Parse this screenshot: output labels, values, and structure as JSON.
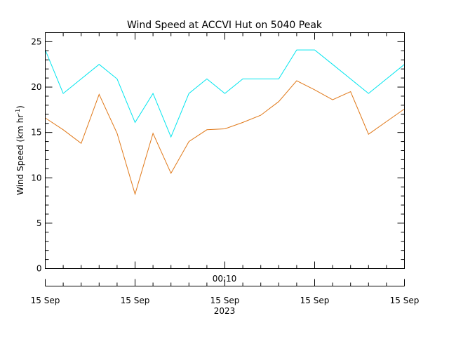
{
  "chart_data": {
    "type": "line",
    "title": "Wind Speed at ACCVI Hut on 5040 Peak",
    "ylabel": {
      "main": "Wind Speed (km hr",
      "sup": "-1",
      "close": ")"
    },
    "ylim": [
      0,
      26
    ],
    "y_ticks": [
      "0",
      "5",
      "10",
      "15",
      "20",
      "25"
    ],
    "y_tick_values": [
      0,
      5,
      10,
      15,
      20,
      25
    ],
    "x_ticks": [
      "15 Sep",
      "15 Sep",
      "15 Sep",
      "15 Sep",
      "15 Sep"
    ],
    "x_time_label": "00:10",
    "x_year_label": "2023",
    "grid": false,
    "series": [
      {
        "color": "#00e5ee",
        "values": [
          24.1,
          19.3,
          20.9,
          22.5,
          20.9,
          16.1,
          19.3,
          14.5,
          19.3,
          20.9,
          19.3,
          20.9,
          20.9,
          20.9,
          24.1,
          24.1,
          22.5,
          20.9,
          19.3,
          20.9,
          22.5
        ]
      },
      {
        "color": "#e07818",
        "values": [
          16.6,
          15.3,
          13.8,
          19.2,
          14.9,
          8.2,
          14.9,
          10.5,
          14.0,
          15.3,
          15.4,
          16.1,
          16.9,
          18.4,
          20.7,
          19.7,
          18.6,
          19.5,
          14.8,
          16.2,
          17.6
        ]
      }
    ]
  }
}
